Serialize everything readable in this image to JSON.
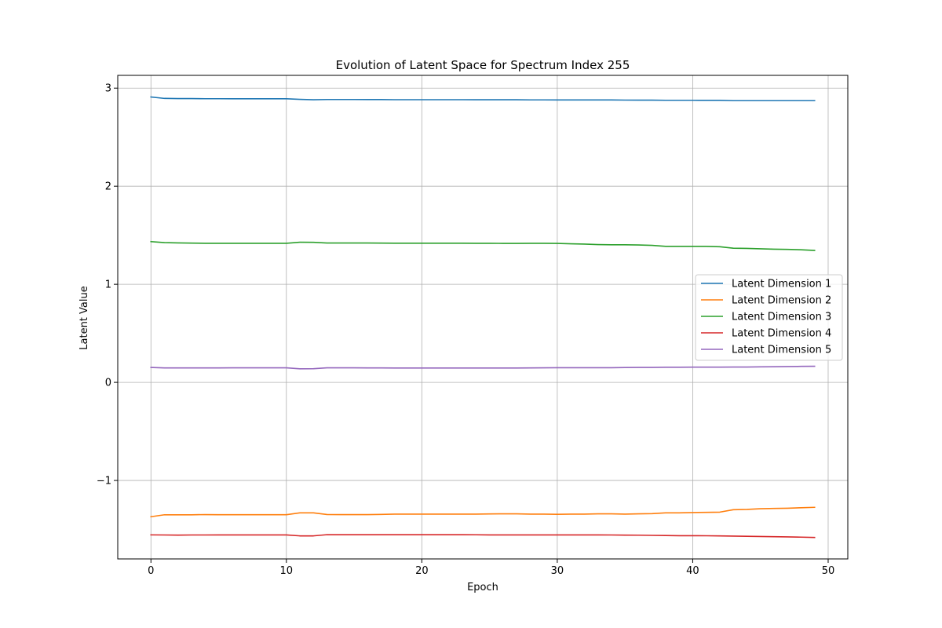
{
  "chart_data": {
    "type": "line",
    "title": "Evolution of Latent Space for Spectrum Index 255",
    "xlabel": "Epoch",
    "ylabel": "Latent Value",
    "xlim": [
      -2.45,
      51.45
    ],
    "ylim": [
      -1.8,
      3.13
    ],
    "xticks": [
      0,
      10,
      20,
      30,
      40,
      50
    ],
    "yticks": [
      -1,
      0,
      1,
      2,
      3
    ],
    "ytick_labels": [
      "−1",
      "0",
      "1",
      "2",
      "3"
    ],
    "grid": true,
    "legend_position": "center-right",
    "x": [
      0,
      1,
      2,
      3,
      4,
      5,
      6,
      7,
      8,
      9,
      10,
      11,
      12,
      13,
      14,
      15,
      16,
      17,
      18,
      19,
      20,
      21,
      22,
      23,
      24,
      25,
      26,
      27,
      28,
      29,
      30,
      31,
      32,
      33,
      34,
      35,
      36,
      37,
      38,
      39,
      40,
      41,
      42,
      43,
      44,
      45,
      46,
      47,
      48,
      49
    ],
    "series": [
      {
        "name": "Latent Dimension 1",
        "color": "#1f77b4",
        "values": [
          2.91,
          2.895,
          2.893,
          2.893,
          2.892,
          2.892,
          2.891,
          2.891,
          2.891,
          2.891,
          2.891,
          2.885,
          2.881,
          2.884,
          2.884,
          2.884,
          2.883,
          2.883,
          2.882,
          2.882,
          2.882,
          2.882,
          2.882,
          2.882,
          2.881,
          2.881,
          2.881,
          2.881,
          2.88,
          2.88,
          2.879,
          2.879,
          2.879,
          2.879,
          2.879,
          2.878,
          2.877,
          2.877,
          2.876,
          2.876,
          2.876,
          2.875,
          2.875,
          2.872,
          2.872,
          2.872,
          2.872,
          2.872,
          2.872,
          2.872
        ]
      },
      {
        "name": "Latent Dimension 2",
        "color": "#ff7f0e",
        "values": [
          -1.37,
          -1.35,
          -1.35,
          -1.35,
          -1.348,
          -1.349,
          -1.349,
          -1.349,
          -1.349,
          -1.349,
          -1.349,
          -1.33,
          -1.33,
          -1.347,
          -1.348,
          -1.348,
          -1.348,
          -1.346,
          -1.343,
          -1.343,
          -1.343,
          -1.343,
          -1.343,
          -1.343,
          -1.343,
          -1.341,
          -1.34,
          -1.34,
          -1.343,
          -1.343,
          -1.345,
          -1.343,
          -1.343,
          -1.34,
          -1.34,
          -1.343,
          -1.34,
          -1.338,
          -1.33,
          -1.33,
          -1.327,
          -1.325,
          -1.323,
          -1.298,
          -1.295,
          -1.288,
          -1.285,
          -1.283,
          -1.278,
          -1.274
        ]
      },
      {
        "name": "Latent Dimension 3",
        "color": "#2ca02c",
        "values": [
          1.435,
          1.425,
          1.422,
          1.42,
          1.418,
          1.418,
          1.418,
          1.418,
          1.418,
          1.418,
          1.418,
          1.429,
          1.428,
          1.421,
          1.421,
          1.421,
          1.421,
          1.42,
          1.419,
          1.419,
          1.419,
          1.419,
          1.419,
          1.419,
          1.418,
          1.418,
          1.417,
          1.417,
          1.418,
          1.418,
          1.417,
          1.413,
          1.41,
          1.405,
          1.403,
          1.403,
          1.401,
          1.397,
          1.387,
          1.387,
          1.387,
          1.387,
          1.383,
          1.368,
          1.366,
          1.362,
          1.358,
          1.356,
          1.352,
          1.345
        ]
      },
      {
        "name": "Latent Dimension 4",
        "color": "#d62728",
        "values": [
          -1.555,
          -1.556,
          -1.557,
          -1.556,
          -1.556,
          -1.555,
          -1.555,
          -1.555,
          -1.555,
          -1.555,
          -1.555,
          -1.565,
          -1.565,
          -1.553,
          -1.553,
          -1.553,
          -1.553,
          -1.553,
          -1.553,
          -1.553,
          -1.553,
          -1.553,
          -1.553,
          -1.553,
          -1.554,
          -1.555,
          -1.555,
          -1.555,
          -1.555,
          -1.555,
          -1.555,
          -1.555,
          -1.555,
          -1.555,
          -1.556,
          -1.557,
          -1.558,
          -1.56,
          -1.561,
          -1.563,
          -1.563,
          -1.564,
          -1.565,
          -1.567,
          -1.569,
          -1.571,
          -1.573,
          -1.575,
          -1.578,
          -1.581
        ]
      },
      {
        "name": "Latent Dimension 5",
        "color": "#9467bd",
        "values": [
          0.152,
          0.147,
          0.147,
          0.147,
          0.147,
          0.147,
          0.148,
          0.148,
          0.148,
          0.148,
          0.148,
          0.138,
          0.139,
          0.148,
          0.148,
          0.148,
          0.147,
          0.147,
          0.146,
          0.146,
          0.146,
          0.146,
          0.146,
          0.146,
          0.146,
          0.146,
          0.146,
          0.146,
          0.147,
          0.148,
          0.149,
          0.149,
          0.149,
          0.149,
          0.149,
          0.151,
          0.152,
          0.152,
          0.154,
          0.154,
          0.155,
          0.155,
          0.155,
          0.156,
          0.156,
          0.158,
          0.159,
          0.161,
          0.163,
          0.164
        ]
      }
    ]
  }
}
